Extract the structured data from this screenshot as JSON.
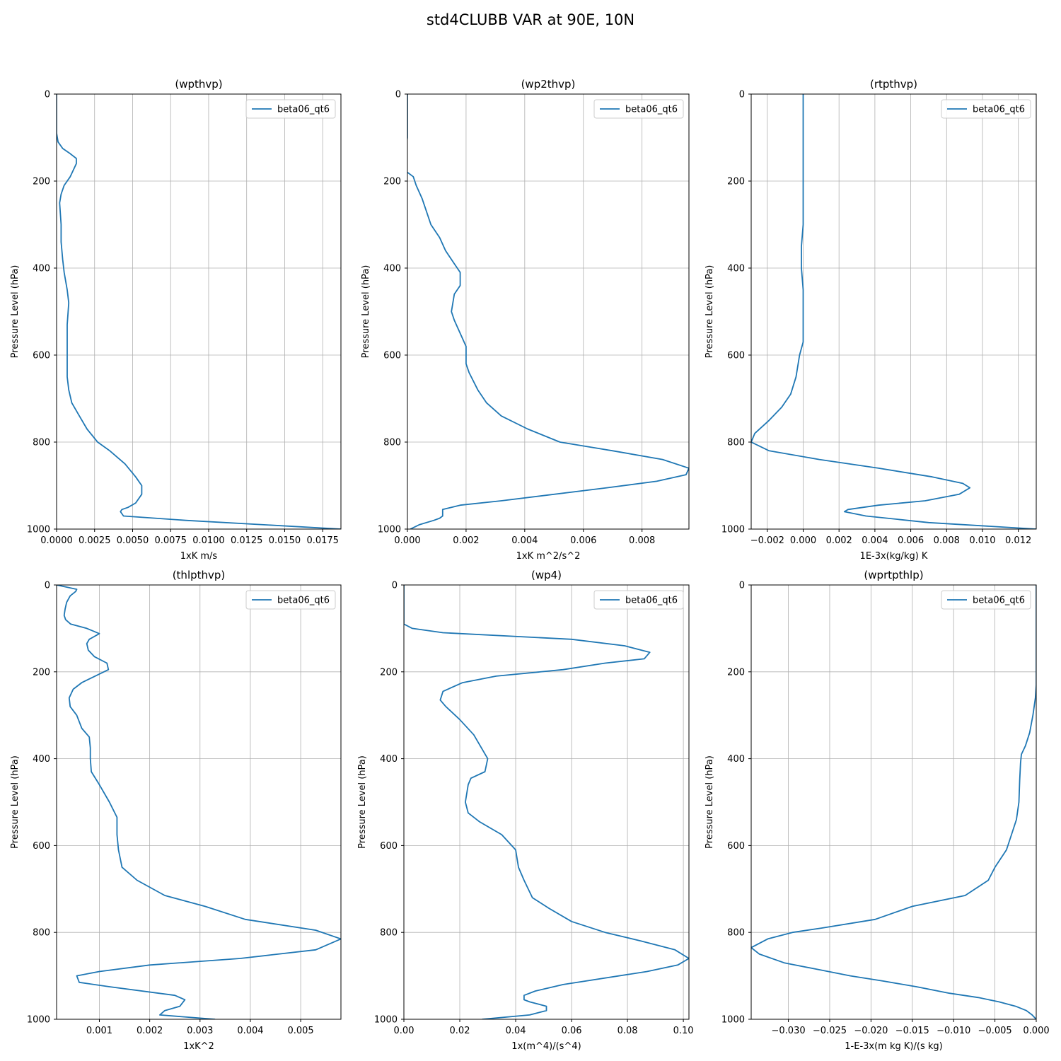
{
  "figure": {
    "title": "std4CLUBB VAR at 90E, 10N"
  },
  "style": {
    "line_color": "#1f77b4",
    "grid_color": "#b0b0b0",
    "axis_color": "#000000"
  },
  "chart_data": [
    {
      "type": "line",
      "title": "(wpthvp)",
      "xlabel": "1xK m/s",
      "ylabel": "Pressure Level (hPa)",
      "xlim": [
        0,
        0.0187
      ],
      "ylim": [
        1000,
        0
      ],
      "xticks": [
        0,
        0.0025,
        0.005,
        0.0075,
        0.01,
        0.0125,
        0.015,
        0.0175
      ],
      "xtick_labels": [
        "0.0000",
        "0.0025",
        "0.0050",
        "0.0075",
        "0.0100",
        "0.0125",
        "0.0150",
        "0.0175"
      ],
      "yticks": [
        0,
        200,
        400,
        600,
        800,
        1000
      ],
      "ytick_labels": [
        "0",
        "200",
        "400",
        "600",
        "800",
        "1000"
      ],
      "grid": true,
      "legend": "top-right",
      "series": [
        {
          "name": "beta06_qt6",
          "x": [
            0.0,
            0.0,
            0.0001,
            0.0004,
            0.0009,
            0.0013,
            0.0013,
            0.0009,
            0.0005,
            0.0003,
            0.0002,
            0.0003,
            0.0003,
            0.0004,
            0.0005,
            0.0007,
            0.0008,
            0.0007,
            0.0007,
            0.0007,
            0.0008,
            0.001,
            0.0015,
            0.002,
            0.0027,
            0.0035,
            0.0045,
            0.0052,
            0.0056,
            0.0056,
            0.0052,
            0.0047,
            0.0043,
            0.0042,
            0.0044,
            0.0085,
            0.0187
          ],
          "y": [
            0,
            90,
            110,
            125,
            137,
            148,
            160,
            190,
            210,
            230,
            250,
            300,
            340,
            380,
            410,
            450,
            480,
            530,
            580,
            650,
            680,
            710,
            740,
            770,
            800,
            820,
            850,
            880,
            900,
            920,
            940,
            950,
            955,
            960,
            970,
            980,
            1000
          ]
        }
      ]
    },
    {
      "type": "line",
      "title": "(wp2thvp)",
      "xlabel": "1xK m^2/s^2",
      "ylabel": "Pressure Level (hPa)",
      "xlim": [
        0,
        0.0096
      ],
      "ylim": [
        1000,
        0
      ],
      "xticks": [
        0,
        0.002,
        0.004,
        0.006,
        0.008
      ],
      "xtick_labels": [
        "0.000",
        "0.002",
        "0.004",
        "0.006",
        "0.008"
      ],
      "yticks": [
        0,
        200,
        400,
        600,
        800,
        1000
      ],
      "ytick_labels": [
        "0",
        "200",
        "400",
        "600",
        "800",
        "1000"
      ],
      "grid": true,
      "legend": "top-right",
      "series": [
        {
          "name": "beta06_qt6",
          "x": [
            0.0,
            0.0,
            0.0,
            -0.0001,
            -0.0001,
            0.0002,
            0.0003,
            0.0005,
            0.0006,
            0.0008,
            0.0011,
            0.0013,
            0.0016,
            0.0018,
            0.0018,
            0.0016,
            0.0015,
            0.0016,
            0.0018,
            0.002,
            0.002,
            0.0021,
            0.0024,
            0.0027,
            0.0032,
            0.0041,
            0.0052,
            0.007,
            0.0087,
            0.0096,
            0.0095,
            0.0085,
            0.0068,
            0.0032,
            0.0018,
            0.0012,
            0.0012,
            0.0012,
            0.0011,
            0.0009,
            0.0004,
            0.0001
          ],
          "y": [
            0,
            50,
            100,
            150,
            175,
            190,
            210,
            240,
            260,
            300,
            330,
            360,
            390,
            410,
            440,
            460,
            500,
            520,
            550,
            580,
            620,
            640,
            680,
            710,
            740,
            770,
            800,
            820,
            840,
            860,
            875,
            890,
            905,
            935,
            945,
            955,
            960,
            970,
            975,
            980,
            990,
            1000
          ]
        }
      ]
    },
    {
      "type": "line",
      "title": "(rtpthvp)",
      "xlabel": "1E-3x(kg/kg) K",
      "ylabel": "Pressure Level (hPa)",
      "xlim": [
        -0.0029,
        0.013
      ],
      "ylim": [
        1000,
        0
      ],
      "xticks": [
        -0.002,
        0,
        0.002,
        0.004,
        0.006,
        0.008,
        0.01,
        0.012
      ],
      "xtick_labels": [
        "−0.002",
        "0.000",
        "0.002",
        "0.004",
        "0.006",
        "0.008",
        "0.010",
        "0.012"
      ],
      "yticks": [
        0,
        200,
        400,
        600,
        800,
        1000
      ],
      "ytick_labels": [
        "0",
        "200",
        "400",
        "600",
        "800",
        "1000"
      ],
      "grid": true,
      "legend": "top-right",
      "series": [
        {
          "name": "beta06_qt6",
          "x": [
            0.0,
            0.0,
            0.0,
            0.0,
            0.0,
            0.0,
            0.0,
            -0.0001,
            -0.0001,
            -0.0001,
            0.0,
            0.0,
            0.0,
            0.0,
            -0.0002,
            -0.0004,
            -0.0007,
            -0.0012,
            -0.0019,
            -0.0027,
            -0.0029,
            -0.0019,
            0.0009,
            0.0042,
            0.0072,
            0.0089,
            0.0093,
            0.0087,
            0.0068,
            0.0042,
            0.0025,
            0.0023,
            0.0035,
            0.007,
            0.013
          ],
          "y": [
            0,
            50,
            100,
            150,
            200,
            250,
            300,
            350,
            380,
            400,
            450,
            500,
            540,
            570,
            600,
            650,
            690,
            720,
            750,
            780,
            800,
            820,
            840,
            860,
            880,
            895,
            905,
            920,
            935,
            945,
            955,
            960,
            970,
            985,
            1000
          ]
        }
      ]
    },
    {
      "type": "line",
      "title": "(thlpthvp)",
      "xlabel": "1xK^2",
      "ylabel": "Pressure Level (hPa)",
      "xlim": [
        0.00015,
        0.0058
      ],
      "ylim": [
        1000,
        0
      ],
      "xticks": [
        0.001,
        0.002,
        0.003,
        0.004,
        0.005
      ],
      "xtick_labels": [
        "0.001",
        "0.002",
        "0.003",
        "0.004",
        "0.005"
      ],
      "yticks": [
        0,
        200,
        400,
        600,
        800,
        1000
      ],
      "ytick_labels": [
        "0",
        "200",
        "400",
        "600",
        "800",
        "1000"
      ],
      "grid": true,
      "legend": "top-right",
      "series": [
        {
          "name": "beta06_qt6",
          "x": [
            0.00015,
            0.00055,
            0.00053,
            0.00042,
            0.00035,
            0.00032,
            0.0003,
            0.00033,
            0.00043,
            0.00075,
            0.001,
            0.0008,
            0.00075,
            0.00078,
            0.0009,
            0.00115,
            0.00118,
            0.001,
            0.00065,
            0.00048,
            0.0004,
            0.00042,
            0.00055,
            0.00065,
            0.0008,
            0.00082,
            0.00082,
            0.00084,
            0.001,
            0.0012,
            0.00135,
            0.00135,
            0.00138,
            0.00145,
            0.00175,
            0.0023,
            0.0031,
            0.0039,
            0.0053,
            0.0058,
            0.0053,
            0.0038,
            0.002,
            0.001,
            0.00055,
            0.0006,
            0.0012,
            0.0025,
            0.0027,
            0.0026,
            0.0023,
            0.0022,
            0.0033
          ],
          "y": [
            0,
            10,
            15,
            25,
            40,
            55,
            70,
            80,
            90,
            100,
            112,
            125,
            135,
            150,
            165,
            180,
            195,
            205,
            225,
            240,
            260,
            280,
            300,
            330,
            350,
            375,
            400,
            430,
            460,
            500,
            535,
            575,
            610,
            650,
            680,
            715,
            740,
            770,
            795,
            815,
            840,
            860,
            875,
            890,
            900,
            915,
            925,
            945,
            955,
            970,
            980,
            990,
            1000
          ]
        }
      ]
    },
    {
      "type": "line",
      "title": "(wp4)",
      "xlabel": "1x(m^4)/(s^4)",
      "ylabel": "Pressure Level (hPa)",
      "xlim": [
        0,
        0.102
      ],
      "ylim": [
        1000,
        0
      ],
      "xticks": [
        0,
        0.02,
        0.04,
        0.06,
        0.08,
        0.1
      ],
      "xtick_labels": [
        "0.00",
        "0.02",
        "0.04",
        "0.06",
        "0.08",
        "0.10"
      ],
      "yticks": [
        0,
        200,
        400,
        600,
        800,
        1000
      ],
      "ytick_labels": [
        "0",
        "200",
        "400",
        "600",
        "800",
        "1000"
      ],
      "grid": true,
      "legend": "top-right",
      "series": [
        {
          "name": "beta06_qt6",
          "x": [
            0.0,
            0.0,
            0.0,
            0.003,
            0.014,
            0.06,
            0.079,
            0.088,
            0.086,
            0.072,
            0.057,
            0.033,
            0.021,
            0.014,
            0.013,
            0.015,
            0.02,
            0.025,
            0.03,
            0.029,
            0.024,
            0.023,
            0.022,
            0.023,
            0.027,
            0.035,
            0.04,
            0.041,
            0.043,
            0.046,
            0.052,
            0.06,
            0.072,
            0.085,
            0.097,
            0.102,
            0.098,
            0.087,
            0.057,
            0.047,
            0.043,
            0.043,
            0.045,
            0.051,
            0.051,
            0.045,
            0.028
          ],
          "y": [
            0,
            60,
            90,
            100,
            110,
            125,
            140,
            155,
            170,
            180,
            195,
            210,
            225,
            245,
            265,
            280,
            310,
            345,
            400,
            430,
            445,
            460,
            500,
            525,
            545,
            575,
            610,
            650,
            680,
            720,
            745,
            775,
            800,
            820,
            840,
            860,
            875,
            890,
            920,
            935,
            945,
            955,
            960,
            970,
            980,
            990,
            1000
          ]
        }
      ]
    },
    {
      "type": "line",
      "title": "(wprtpthlp)",
      "xlabel": "1-E-3x(m kg K)/(s kg)",
      "ylabel": "Pressure Level (hPa)",
      "xlim": [
        -0.0345,
        0
      ],
      "ylim": [
        1000,
        0
      ],
      "xticks": [
        -0.03,
        -0.025,
        -0.02,
        -0.015,
        -0.01,
        -0.005,
        0
      ],
      "xtick_labels": [
        "−0.030",
        "−0.025",
        "−0.020",
        "−0.015",
        "−0.010",
        "−0.005",
        "0.000"
      ],
      "yticks": [
        0,
        200,
        400,
        600,
        800,
        1000
      ],
      "ytick_labels": [
        "0",
        "200",
        "400",
        "600",
        "800",
        "1000"
      ],
      "grid": true,
      "legend": "top-right",
      "series": [
        {
          "name": "beta06_qt6",
          "x": [
            0.0,
            0.0,
            0.0,
            0.0,
            -0.0001,
            -0.0004,
            -0.0008,
            -0.0013,
            -0.0018,
            -0.0019,
            -0.002,
            -0.0021,
            -0.0024,
            -0.003,
            -0.0036,
            -0.005,
            -0.0058,
            -0.0086,
            -0.015,
            -0.0195,
            -0.026,
            -0.0295,
            -0.0325,
            -0.0345,
            -0.0335,
            -0.0305,
            -0.0265,
            -0.0225,
            -0.0185,
            -0.0145,
            -0.0105,
            -0.007,
            -0.0045,
            -0.0025,
            -0.0012,
            -0.0005,
            0.0
          ],
          "y": [
            0,
            100,
            200,
            230,
            260,
            300,
            340,
            370,
            390,
            410,
            450,
            500,
            540,
            575,
            610,
            650,
            680,
            715,
            740,
            770,
            790,
            800,
            815,
            835,
            850,
            870,
            885,
            900,
            912,
            925,
            940,
            950,
            960,
            970,
            980,
            990,
            1000
          ]
        }
      ]
    }
  ]
}
